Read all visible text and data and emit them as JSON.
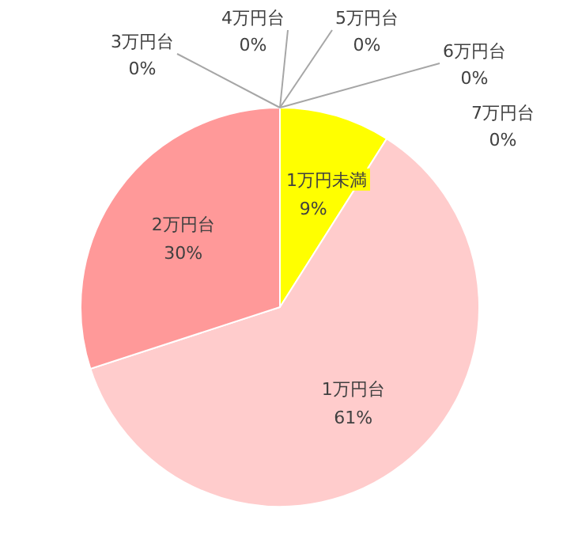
{
  "chart_data": {
    "type": "pie",
    "categories": [
      "1万円未満",
      "1万円台",
      "2万円台",
      "3万円台",
      "4万円台",
      "5万円台",
      "6万円台",
      "7万円台"
    ],
    "values": [
      9,
      61,
      30,
      0,
      0,
      0,
      0,
      0
    ],
    "value_labels": [
      "9%",
      "61%",
      "30%",
      "0%",
      "0%",
      "0%",
      "0%",
      "0%"
    ],
    "colors": [
      "#ffff00",
      "#ffcccc",
      "#ff9999",
      "#ff6666",
      "#cc3333",
      "#993333",
      "#ff9966",
      "#ffcc99"
    ]
  }
}
